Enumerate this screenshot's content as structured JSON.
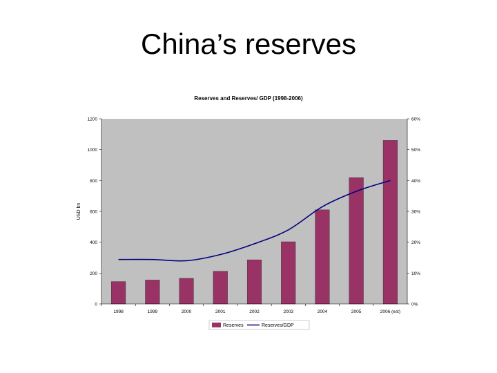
{
  "slide": {
    "title": "China’s reserves"
  },
  "chart_data": {
    "type": "bar",
    "title": "Reserves and Reserves/ GDP (1998-2006)",
    "categories": [
      "1998",
      "1999",
      "2000",
      "2001",
      "2002",
      "2003",
      "2004",
      "2005",
      "2006 (est)"
    ],
    "ylabel": "USD bn",
    "ylim": [
      0,
      1200
    ],
    "yticks": [
      "0",
      "200",
      "400",
      "600",
      "800",
      "1000",
      "1200"
    ],
    "y2lim": [
      0,
      60
    ],
    "y2ticks": [
      "0%",
      "10%",
      "20%",
      "30%",
      "40%",
      "50%",
      "60%"
    ],
    "grid": false,
    "legend_position": "bottom",
    "series": [
      {
        "name": "Reserves",
        "type": "bar",
        "axis": "left",
        "color": "#993366",
        "values": [
          145,
          155,
          166,
          212,
          286,
          403,
          610,
          819,
          1060
        ]
      },
      {
        "name": "Reserves/GDP",
        "type": "line",
        "axis": "right",
        "color": "#000080",
        "values": [
          14.4,
          14.4,
          14.0,
          16.0,
          19.5,
          24.0,
          31.5,
          36.5,
          40.0
        ]
      }
    ],
    "colors": {
      "plot_background": "#c0c0c0"
    }
  }
}
